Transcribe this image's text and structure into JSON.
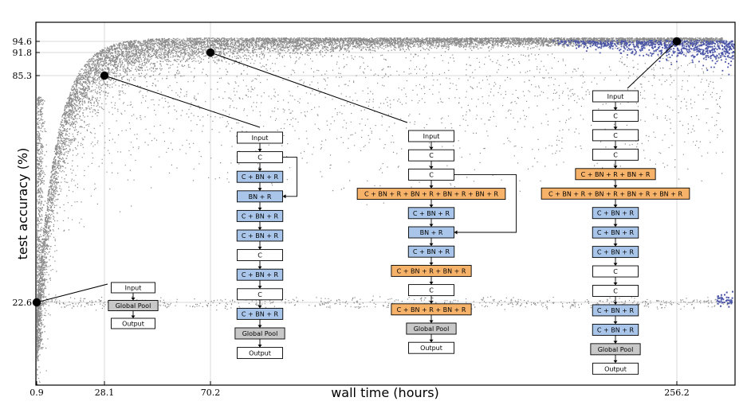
{
  "chart_data": {
    "type": "scatter",
    "title": "",
    "xlabel": "wall time (hours)",
    "ylabel": "test accuracy (%)",
    "x_ticks": [
      0.9,
      28.1,
      70.2,
      256.2
    ],
    "y_ticks": [
      22.6,
      85.3,
      91.8,
      94.6
    ],
    "x_tick_labels": [
      "0.9",
      "28.1",
      "70.2",
      "256.2"
    ],
    "y_tick_labels": [
      "22.6",
      "85.3",
      "91.8",
      "94.6"
    ],
    "xlim": [
      0,
      280
    ],
    "ylim": [
      0,
      98
    ],
    "grid": true,
    "series": [
      {
        "role": "population",
        "color": "#8a8a8a"
      },
      {
        "role": "recent",
        "color": "#4a55a8"
      }
    ],
    "highlighted_points": [
      {
        "x": 0.9,
        "y": 22.6
      },
      {
        "x": 28.1,
        "y": 85.3
      },
      {
        "x": 70.2,
        "y": 91.8
      },
      {
        "x": 256.2,
        "y": 94.6
      }
    ],
    "architectures": [
      {
        "anchor": 0,
        "layers": [
          {
            "label": "Input",
            "kind": "plain"
          },
          {
            "label": "Global Pool",
            "kind": "pool"
          },
          {
            "label": "Output",
            "kind": "plain"
          }
        ],
        "skips": []
      },
      {
        "anchor": 1,
        "layers": [
          {
            "label": "Input",
            "kind": "plain"
          },
          {
            "label": "C",
            "kind": "plain"
          },
          {
            "label": "C + BN + R",
            "kind": "blue"
          },
          {
            "label": "BN + R",
            "kind": "blue"
          },
          {
            "label": "C + BN + R",
            "kind": "blue"
          },
          {
            "label": "C + BN + R",
            "kind": "blue"
          },
          {
            "label": "C",
            "kind": "plain"
          },
          {
            "label": "C + BN + R",
            "kind": "blue"
          },
          {
            "label": "C",
            "kind": "plain"
          },
          {
            "label": "C + BN + R",
            "kind": "blue"
          },
          {
            "label": "Global Pool",
            "kind": "pool"
          },
          {
            "label": "Output",
            "kind": "plain"
          }
        ],
        "skips": [
          [
            1,
            3
          ]
        ]
      },
      {
        "anchor": 2,
        "layers": [
          {
            "label": "Input",
            "kind": "plain"
          },
          {
            "label": "C",
            "kind": "plain"
          },
          {
            "label": "C",
            "kind": "plain"
          },
          {
            "label": "C + BN + R + BN + R + BN + R + BN + R",
            "kind": "orange"
          },
          {
            "label": "C + BN + R",
            "kind": "blue"
          },
          {
            "label": "BN + R",
            "kind": "blue"
          },
          {
            "label": "C + BN + R",
            "kind": "blue"
          },
          {
            "label": "C + BN + R + BN + R",
            "kind": "orange"
          },
          {
            "label": "C",
            "kind": "plain"
          },
          {
            "label": "C + BN + R + BN + R",
            "kind": "orange"
          },
          {
            "label": "Global Pool",
            "kind": "pool"
          },
          {
            "label": "Output",
            "kind": "plain"
          }
        ],
        "skips": [
          [
            2,
            5
          ]
        ]
      },
      {
        "anchor": 3,
        "layers": [
          {
            "label": "Input",
            "kind": "plain"
          },
          {
            "label": "C",
            "kind": "plain"
          },
          {
            "label": "C",
            "kind": "plain"
          },
          {
            "label": "C",
            "kind": "plain"
          },
          {
            "label": "C + BN + R + BN + R",
            "kind": "orange"
          },
          {
            "label": "C + BN + R + BN + R + BN + R + BN + R",
            "kind": "orange"
          },
          {
            "label": "C + BN + R",
            "kind": "blue"
          },
          {
            "label": "C + BN + R",
            "kind": "blue"
          },
          {
            "label": "C + BN + R",
            "kind": "blue"
          },
          {
            "label": "C",
            "kind": "plain"
          },
          {
            "label": "C",
            "kind": "plain"
          },
          {
            "label": "C + BN + R",
            "kind": "blue"
          },
          {
            "label": "C + BN + R",
            "kind": "blue"
          },
          {
            "label": "Global Pool",
            "kind": "pool"
          },
          {
            "label": "Output",
            "kind": "plain"
          }
        ],
        "skips": []
      }
    ],
    "box_colors": {
      "plain": "#ffffff",
      "blue": "#a9c6ea",
      "orange": "#f7b26a",
      "pool": "#c8c8c8"
    }
  }
}
